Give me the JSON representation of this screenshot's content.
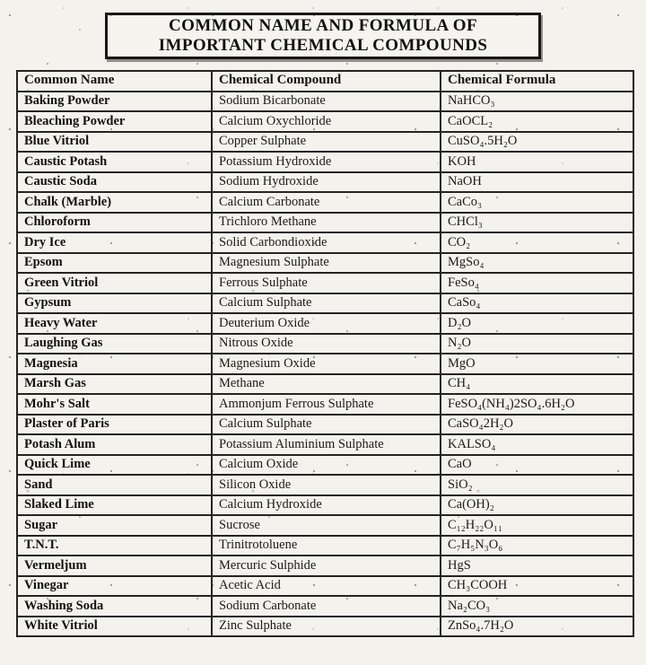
{
  "title": {
    "line1": "COMMON NAME AND FORMULA OF",
    "line2": "IMPORTANT CHEMICAL COMPOUNDS"
  },
  "colors": {
    "paper": "#f3f2ec",
    "ink": "#14110e",
    "table_border": "#272420"
  },
  "table": {
    "headers": [
      "Common Name",
      "Chemical Compound",
      "Chemical Formula"
    ],
    "rows": [
      {
        "name": "Baking Powder",
        "compound": "Sodium Bicarbonate",
        "formula": "NaHCO₃"
      },
      {
        "name": "Bleaching Powder",
        "compound": "Calcium Oxychloride",
        "formula": "CaOCL₂"
      },
      {
        "name": "Blue Vitriol",
        "compound": "Copper Sulphate",
        "formula": "CuSO₄.5H₂O"
      },
      {
        "name": "Caustic Potash",
        "compound": "Potassium Hydroxide",
        "formula": "KOH"
      },
      {
        "name": "Caustic Soda",
        "compound": "Sodium Hydroxide",
        "formula": "NaOH"
      },
      {
        "name": "Chalk (Marble)",
        "compound": "Calcium Carbonate",
        "formula": "CaCo₃"
      },
      {
        "name": "Chloroform",
        "compound": "Trichloro Methane",
        "formula": "CHCl₃"
      },
      {
        "name": "Dry Ice",
        "compound": "Solid Carbondioxide",
        "formula": "CO₂"
      },
      {
        "name": "Epsom",
        "compound": "Magnesium Sulphate",
        "formula": "MgSo₄"
      },
      {
        "name": "Green Vitriol",
        "compound": "Ferrous Sulphate",
        "formula": "FeSo₄"
      },
      {
        "name": "Gypsum",
        "compound": "Calcium Sulphate",
        "formula": "CaSo₄"
      },
      {
        "name": "Heavy Water",
        "compound": "Deuterium Oxide",
        "formula": "D₂O"
      },
      {
        "name": "Laughing Gas",
        "compound": "Nitrous Oxide",
        "formula": "N₂O"
      },
      {
        "name": "Magnesia",
        "compound": "Magnesium Oxide",
        "formula": "MgO"
      },
      {
        "name": "Marsh Gas",
        "compound": "Methane",
        "formula": "CH₄"
      },
      {
        "name": "Mohr's Salt",
        "compound": "Ammonjum Ferrous Sulphate",
        "formula": "FeSO₄(NH₄)2SO₄.6H₂O"
      },
      {
        "name": "Plaster of Paris",
        "compound": "Calcium Sulphate",
        "formula": "CaSO₄2H₂O"
      },
      {
        "name": "Potash Alum",
        "compound": "Potassium Aluminium Sulphate",
        "formula": "KALSO₄"
      },
      {
        "name": "Quick Lime",
        "compound": "Calcium Oxide",
        "formula": "CaO"
      },
      {
        "name": "Sand",
        "compound": "Silicon Oxide",
        "formula": "SiO₂"
      },
      {
        "name": "Slaked Lime",
        "compound": "Calcium Hydroxide",
        "formula": "Ca(OH)₂"
      },
      {
        "name": "Sugar",
        "compound": "Sucrose",
        "formula": "C₁₂H₂₂O₁₁"
      },
      {
        "name": "T.N.T.",
        "compound": "Trinitrotoluene",
        "formula": "C₇H₅N₃O₆"
      },
      {
        "name": "Vermeljum",
        "compound": "Mercuric Sulphide",
        "formula": "HgS"
      },
      {
        "name": "Vinegar",
        "compound": "Acetic Acid",
        "formula": "CH₃COOH"
      },
      {
        "name": "Washing Soda",
        "compound": "Sodium Carbonate",
        "formula": "Na₂CO₃"
      },
      {
        "name": "White Vitriol",
        "compound": "Zinc Sulphate",
        "formula": "ZnSo₄.7H₂O"
      }
    ]
  }
}
